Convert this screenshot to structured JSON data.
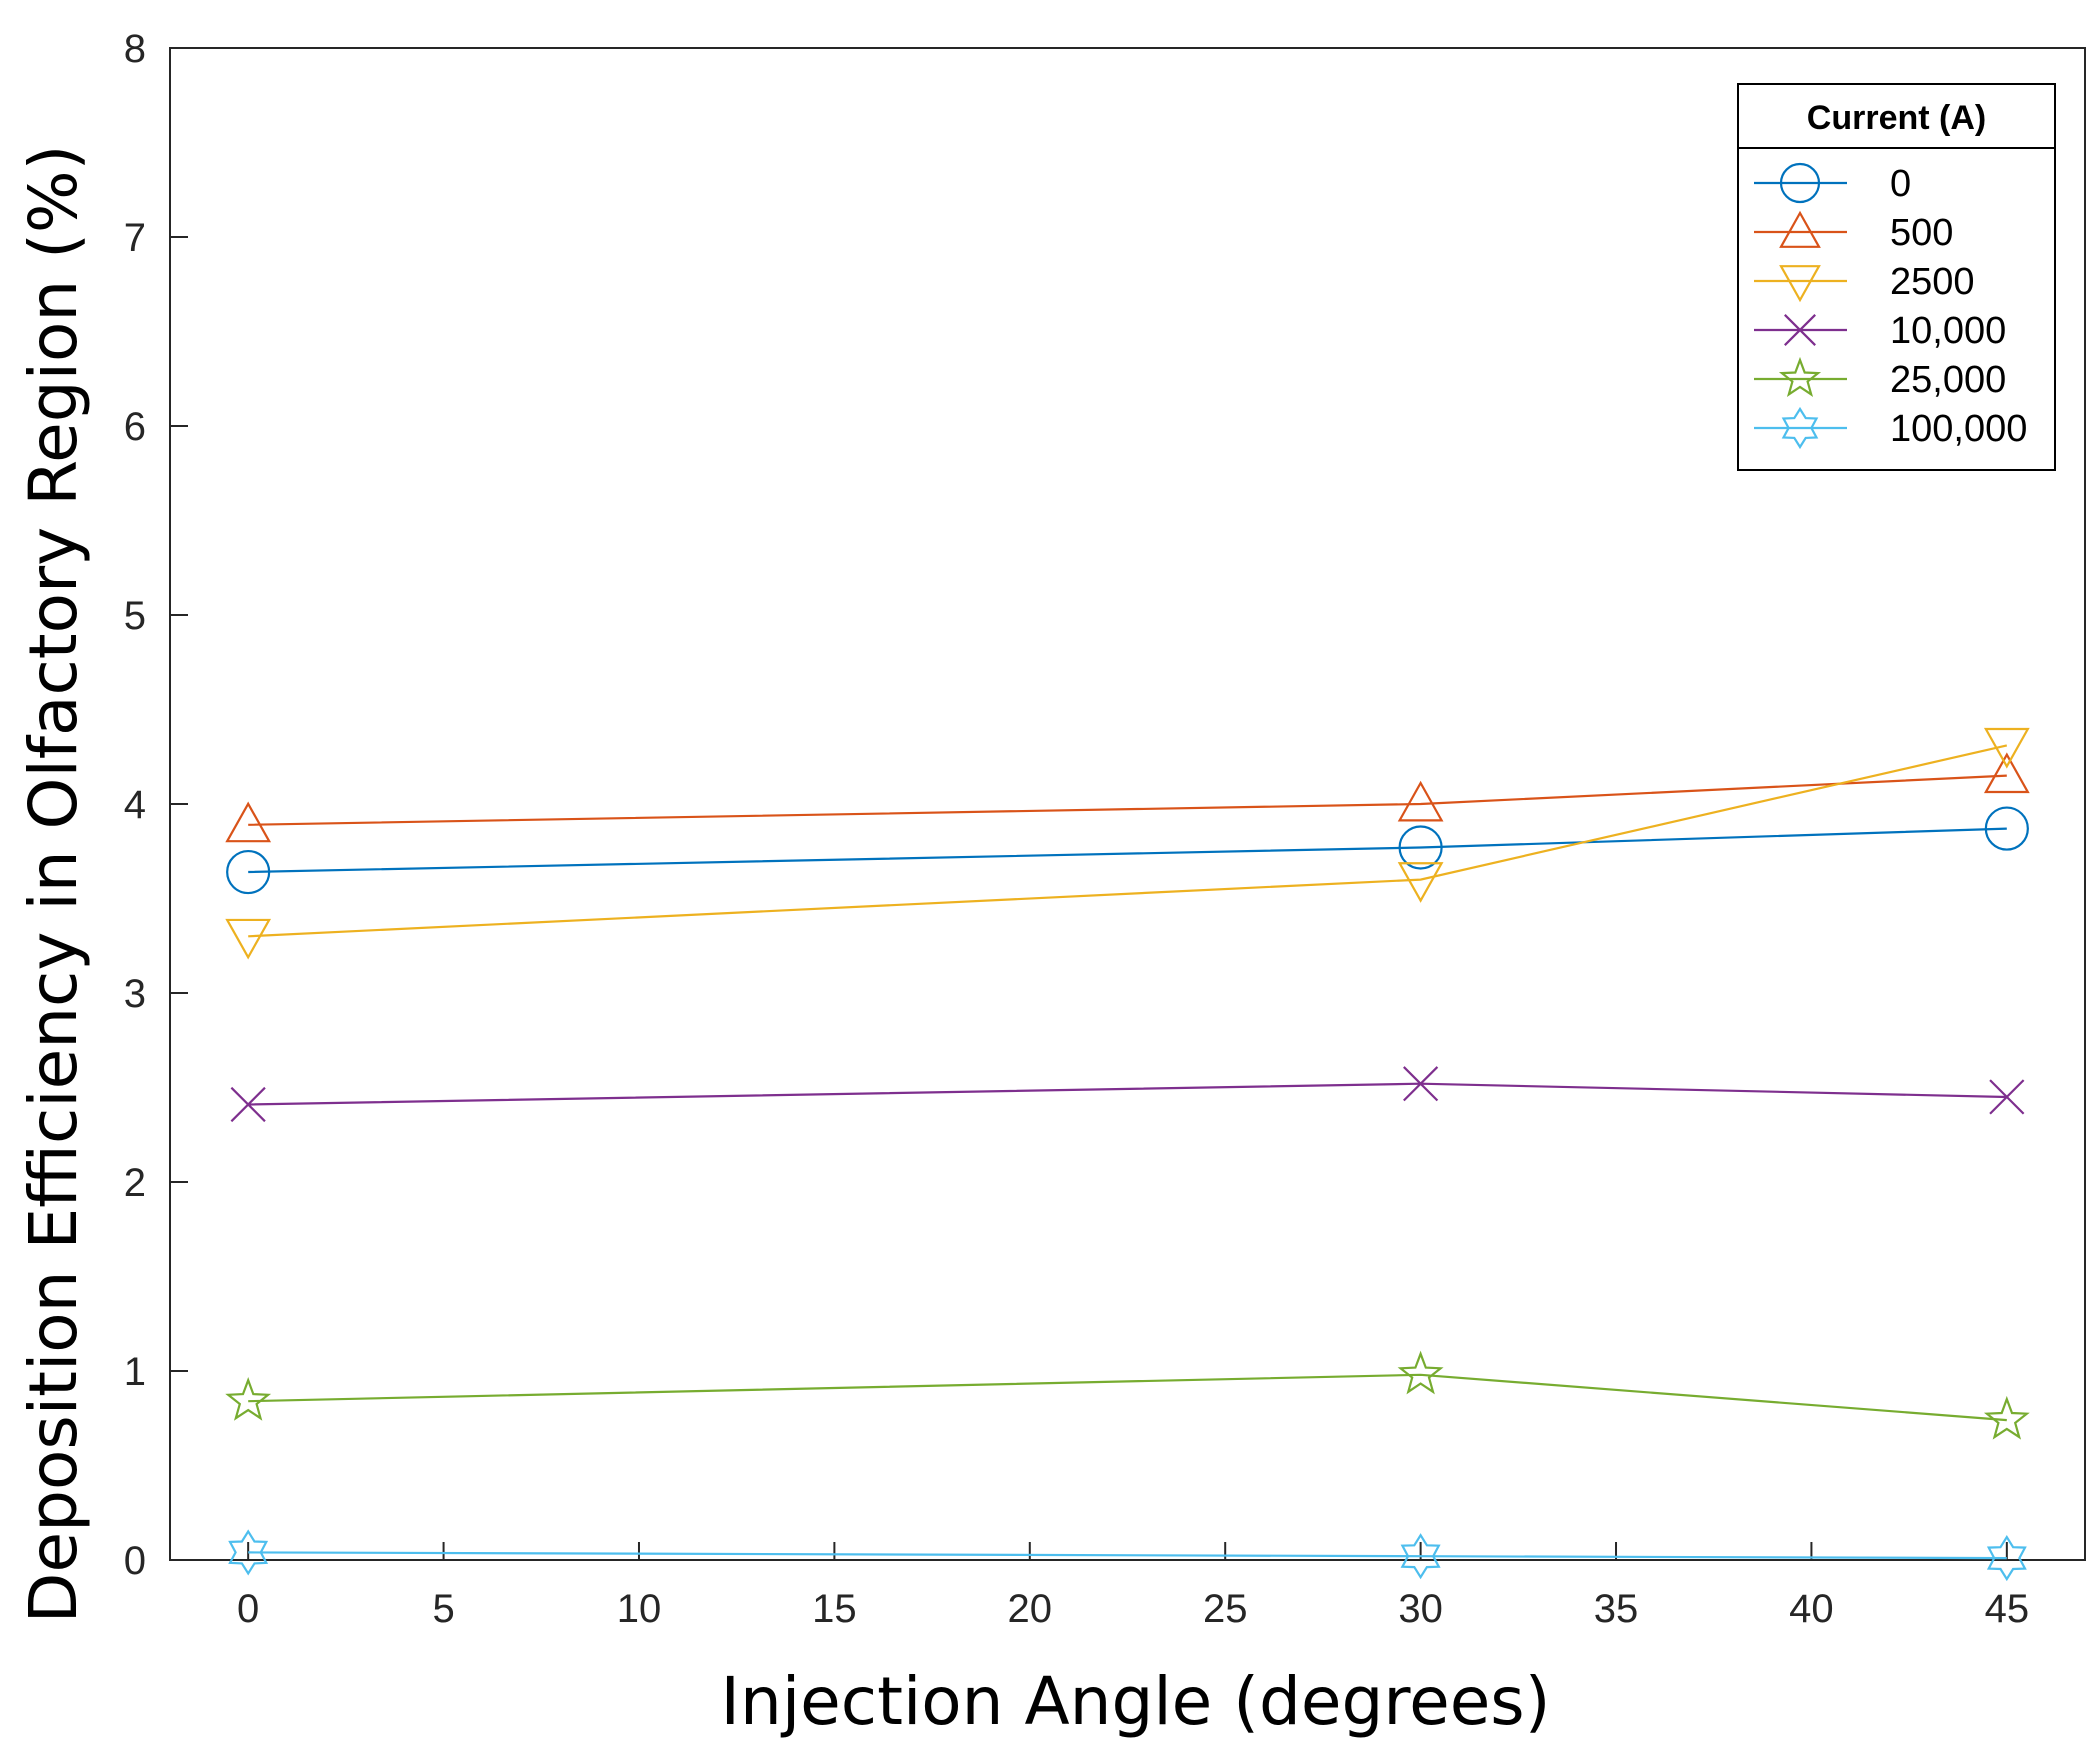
{
  "chart_data": {
    "type": "line",
    "xlabel": "Injection Angle (degrees)",
    "ylabel": "Deposition Efficiency in Olfactory Region (%)",
    "xlim": [
      -2,
      47
    ],
    "ylim": [
      0,
      8
    ],
    "xticks": [
      0,
      5,
      10,
      15,
      20,
      25,
      30,
      35,
      40,
      45
    ],
    "yticks": [
      0,
      1,
      2,
      3,
      4,
      5,
      6,
      7,
      8
    ],
    "grid": false,
    "legend": {
      "title": "Current (A)",
      "placement": "top-right"
    },
    "x": [
      0,
      30,
      45
    ],
    "series": [
      {
        "name": "0",
        "marker": "circle",
        "color": "#0072BD",
        "values": [
          3.64,
          3.77,
          3.87
        ]
      },
      {
        "name": "500",
        "marker": "triangle-up",
        "color": "#D95319",
        "values": [
          3.89,
          4.0,
          4.15
        ]
      },
      {
        "name": "2500",
        "marker": "triangle-down",
        "color": "#EDB120",
        "values": [
          3.3,
          3.6,
          4.31
        ]
      },
      {
        "name": "10,000",
        "marker": "x",
        "color": "#7E2F8E",
        "values": [
          2.41,
          2.52,
          2.45
        ]
      },
      {
        "name": "25,000",
        "marker": "pentagram",
        "color": "#77AC30",
        "values": [
          0.84,
          0.98,
          0.74
        ]
      },
      {
        "name": "100,000",
        "marker": "hexagram",
        "color": "#4DBEEE",
        "values": [
          0.04,
          0.02,
          0.01
        ]
      }
    ]
  }
}
